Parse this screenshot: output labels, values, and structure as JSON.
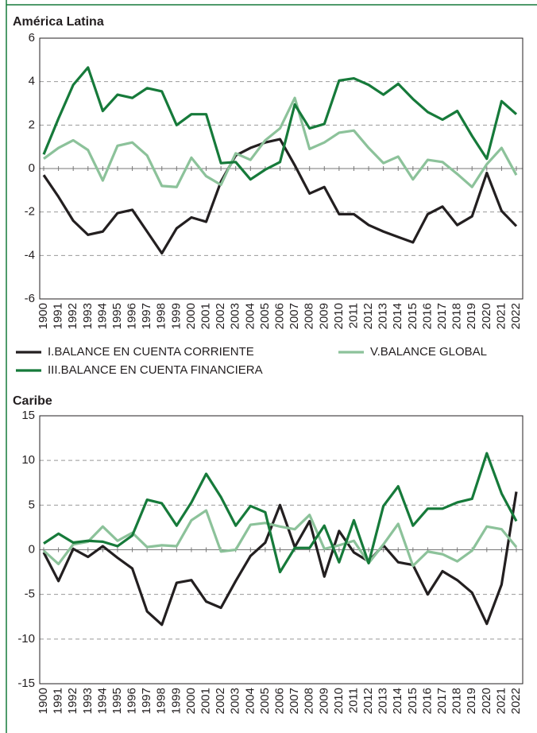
{
  "chart_data": [
    {
      "type": "line",
      "title": "América Latina",
      "categories": [
        "1900",
        "1991",
        "1992",
        "1993",
        "1994",
        "1995",
        "1996",
        "1997",
        "1998",
        "1999",
        "2000",
        "2001",
        "2002",
        "2003",
        "2004",
        "2005",
        "2006",
        "2007",
        "2008",
        "2009",
        "2010",
        "2011",
        "2012",
        "2013",
        "2014",
        "2015",
        "2016",
        "2017",
        "2018",
        "2019",
        "2020",
        "2021",
        "2022"
      ],
      "ylim": [
        -6,
        6
      ],
      "yticks": [
        -6,
        -4,
        -2,
        0,
        2,
        4,
        6
      ],
      "grid": true,
      "series": [
        {
          "name": "I.BALANCE EN CUENTA CORRIENTE",
          "color": "#231f20",
          "values": [
            -0.3,
            -1.3,
            -2.4,
            -3.05,
            -2.9,
            -2.05,
            -1.9,
            -2.9,
            -3.9,
            -2.75,
            -2.25,
            -2.45,
            -0.6,
            0.6,
            0.95,
            1.2,
            1.35,
            0.15,
            -1.15,
            -0.85,
            -2.1,
            -2.1,
            -2.6,
            -2.9,
            -3.15,
            -3.4,
            -2.1,
            -1.75,
            -2.6,
            -2.2,
            -0.2,
            -1.95,
            -2.65
          ]
        },
        {
          "name": "V.BALANCE GLOBAL",
          "color": "#8cc29a",
          "values": [
            0.45,
            0.95,
            1.3,
            0.85,
            -0.55,
            1.05,
            1.2,
            0.6,
            -0.8,
            -0.85,
            0.5,
            -0.35,
            -0.75,
            0.7,
            0.4,
            1.3,
            1.85,
            3.25,
            0.9,
            1.2,
            1.65,
            1.75,
            0.95,
            0.25,
            0.55,
            -0.5,
            0.4,
            0.3,
            -0.25,
            -0.85,
            0.2,
            0.95,
            -0.3
          ]
        },
        {
          "name": "III.BALANCE EN CUENTA FINANCIERA",
          "color": "#167a3a",
          "values": [
            0.65,
            2.3,
            3.85,
            4.65,
            2.65,
            3.4,
            3.25,
            3.7,
            3.55,
            2.0,
            2.5,
            2.5,
            0.25,
            0.3,
            -0.5,
            -0.05,
            0.3,
            2.95,
            1.85,
            2.05,
            4.05,
            4.15,
            3.85,
            3.4,
            3.9,
            3.2,
            2.6,
            2.25,
            2.65,
            1.5,
            0.45,
            3.1,
            2.5
          ]
        }
      ]
    },
    {
      "type": "line",
      "title": "Caribe",
      "categories": [
        "1900",
        "1991",
        "1992",
        "1993",
        "1994",
        "1995",
        "1996",
        "1997",
        "1998",
        "1999",
        "2000",
        "2001",
        "2002",
        "2003",
        "2004",
        "2005",
        "2006",
        "2007",
        "2008",
        "2009",
        "2010",
        "2011",
        "2012",
        "2013",
        "2014",
        "2015",
        "2016",
        "2017",
        "2018",
        "2019",
        "2020",
        "2021",
        "2022"
      ],
      "ylim": [
        -15,
        15
      ],
      "yticks": [
        -15,
        -10,
        -5,
        0,
        5,
        10,
        15
      ],
      "grid": true,
      "series": [
        {
          "color": "#231f20",
          "values": [
            -0.3,
            -3.5,
            0.1,
            -0.8,
            0.4,
            -0.9,
            -2.1,
            -6.9,
            -8.4,
            -3.7,
            -3.4,
            -5.8,
            -6.5,
            -3.5,
            -0.7,
            0.8,
            5.0,
            0.3,
            3.2,
            -3.0,
            2.1,
            -0.3,
            -1.3,
            0.5,
            -1.4,
            -1.7,
            -5.0,
            -2.4,
            -3.4,
            -4.8,
            -8.3,
            -3.9,
            6.5
          ]
        },
        {
          "color": "#8cc29a",
          "values": [
            -0.1,
            -1.6,
            0.6,
            0.9,
            2.6,
            1.0,
            1.9,
            0.3,
            0.5,
            0.4,
            3.3,
            4.4,
            -0.2,
            0.0,
            2.8,
            3.0,
            2.6,
            2.3,
            3.9,
            0.1,
            0.5,
            1.0,
            -1.5,
            0.6,
            2.9,
            -1.8,
            -0.2,
            -0.5,
            -1.3,
            -0.1,
            2.6,
            2.3,
            0.3
          ]
        },
        {
          "color": "#167a3a",
          "values": [
            0.7,
            1.8,
            0.8,
            1.0,
            0.9,
            0.4,
            1.6,
            5.6,
            5.2,
            2.7,
            5.3,
            8.5,
            5.9,
            2.7,
            4.9,
            4.2,
            -2.5,
            0.2,
            0.2,
            2.7,
            -1.4,
            3.3,
            -1.5,
            4.9,
            7.1,
            2.7,
            4.6,
            4.6,
            5.3,
            5.7,
            10.8,
            6.3,
            3.2
          ]
        }
      ]
    }
  ]
}
